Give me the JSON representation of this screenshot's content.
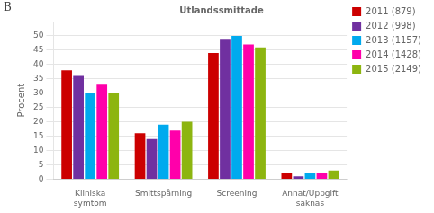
{
  "chart_data": {
    "type": "bar",
    "title": "Utlandssmittade",
    "annotations": [
      "B"
    ],
    "ylabel": "Procent",
    "categories": [
      "Kliniska\nsymtom",
      "Smittspårning",
      "Screening",
      "Annat/Uppgift\nsaknas"
    ],
    "series": [
      {
        "name": "2011 (879)",
        "color": "#cc0000",
        "values": [
          38,
          16,
          44,
          2
        ]
      },
      {
        "name": "2012 (998)",
        "color": "#7030a0",
        "values": [
          36,
          14,
          49,
          1
        ]
      },
      {
        "name": "2013 (1157)",
        "color": "#00aaee",
        "values": [
          30,
          19,
          50,
          2
        ]
      },
      {
        "name": "2014 (1428)",
        "color": "#ff00aa",
        "values": [
          33,
          17,
          47,
          2
        ]
      },
      {
        "name": "2015 (2149)",
        "color": "#8db510",
        "values": [
          30,
          20,
          46,
          3
        ]
      }
    ],
    "ylim": [
      0,
      55
    ],
    "yticks": [
      0,
      5,
      10,
      15,
      20,
      25,
      30,
      35,
      40,
      45,
      50
    ],
    "grid": true,
    "legend": "right"
  }
}
